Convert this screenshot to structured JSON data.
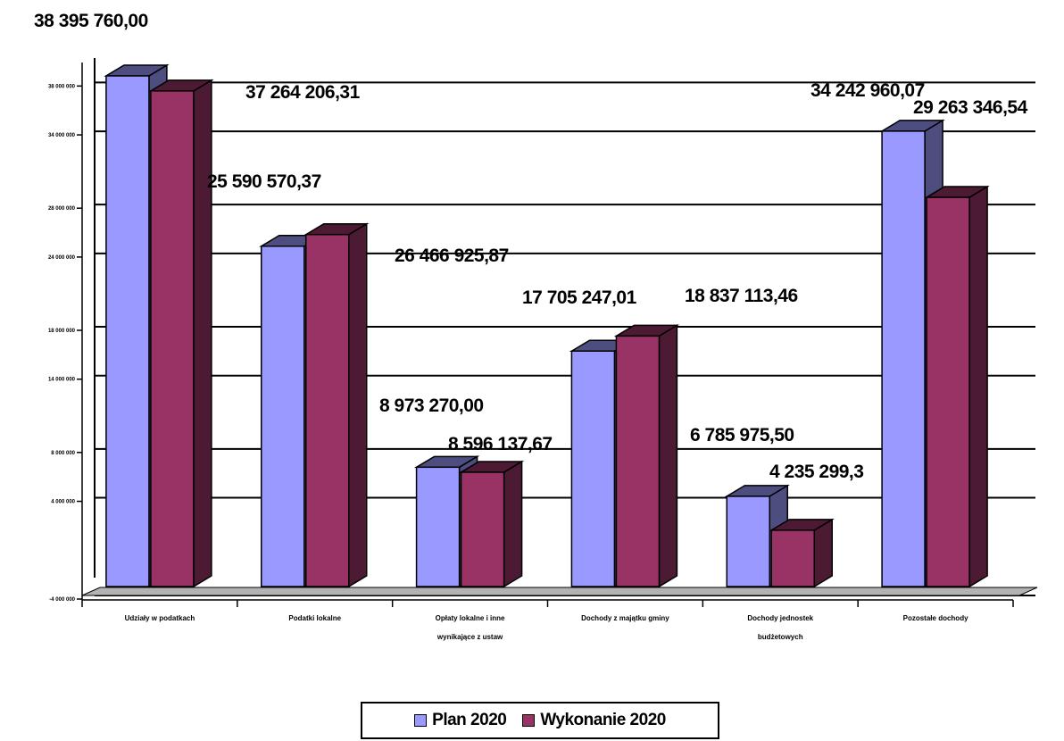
{
  "chart_data": {
    "type": "bar",
    "title": "",
    "xlabel": "",
    "ylabel": "",
    "ylim": [
      -4000000,
      40000000
    ],
    "grid": true,
    "legend_position": "bottom",
    "categories": [
      [
        "Udziały w podatkach"
      ],
      [
        "Podatki lokalne"
      ],
      [
        "Opłaty lokalne i inne",
        "wynikające z ustaw"
      ],
      [
        "Dochody z majątku gminy"
      ],
      [
        "Dochody jednostek",
        "budżetowych"
      ],
      [
        "Pozostałe dochody"
      ]
    ],
    "y_ticks": [
      {
        "value": -4000000,
        "label": "-4 000 000"
      },
      {
        "value": 4000000,
        "label": "4 000 000"
      },
      {
        "value": 8000000,
        "label": "8 000 000"
      },
      {
        "value": 14000000,
        "label": "14 000 000"
      },
      {
        "value": 18000000,
        "label": "18 000 000"
      },
      {
        "value": 24000000,
        "label": "24 000 000"
      },
      {
        "value": 28000000,
        "label": "28 000 000"
      },
      {
        "value": 34000000,
        "label": "34 000 000"
      },
      {
        "value": 38000000,
        "label": "38 000 000"
      }
    ],
    "series": [
      {
        "name": "Plan 2020",
        "color": "#9999ff",
        "side_color": "#4d4d80",
        "values": [
          38395760.0,
          25590570.37,
          8973270.0,
          17705247.01,
          6785975.5,
          34242960.07
        ],
        "labels": [
          "38 395 760,00",
          "25 590 570,37",
          "8 973 270,00",
          "17 705 247,01",
          "6 785 975,50",
          "34 242 960,07"
        ]
      },
      {
        "name": "Wykonanie 2020",
        "color": "#993366",
        "side_color": "#4d1a33",
        "values": [
          37264206.31,
          26466925.87,
          8596137.67,
          18837113.46,
          4235299.3,
          29263346.54
        ],
        "labels": [
          "37 264 206,31",
          "26 466 925,87",
          "8 596 137,67",
          "18 837 113,46",
          "4 235 299,3",
          "29 263 346,54"
        ]
      }
    ]
  }
}
